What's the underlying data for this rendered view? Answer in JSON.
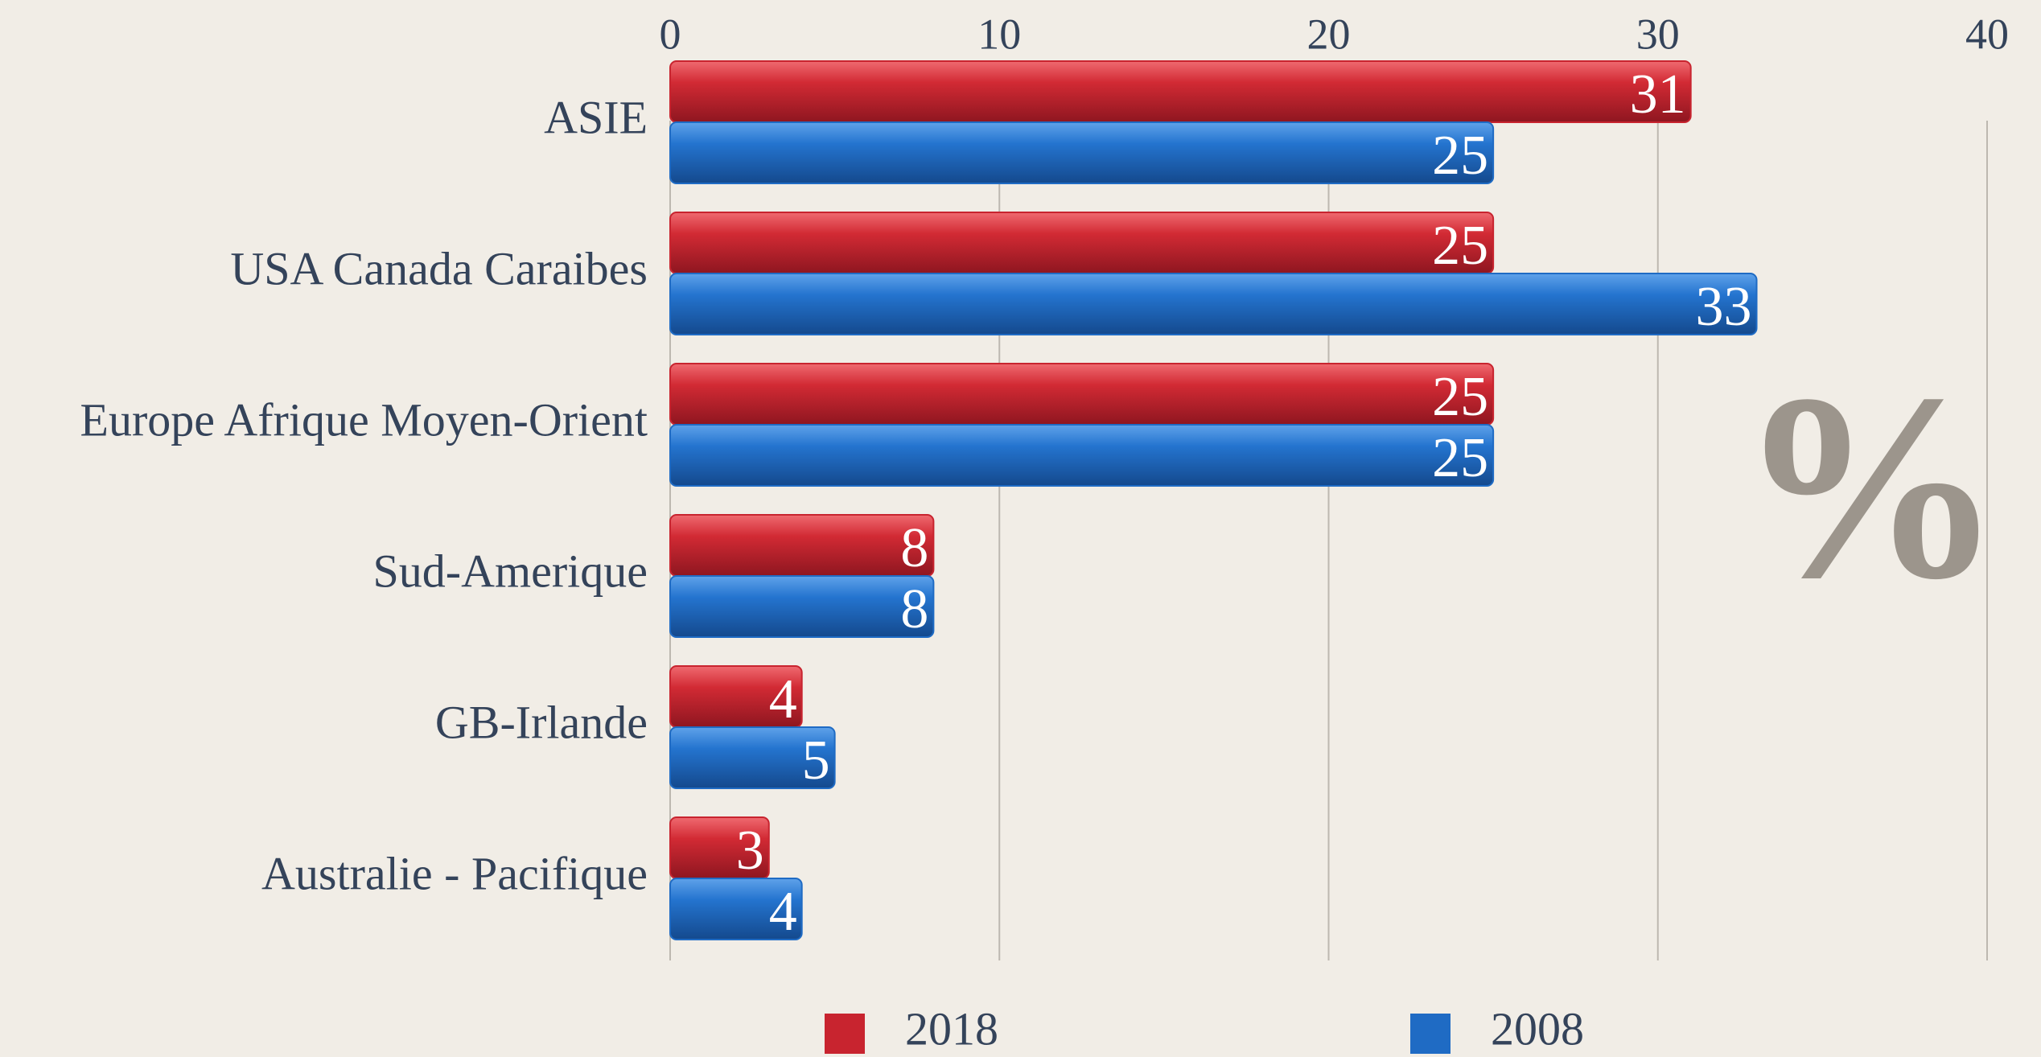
{
  "chart_data": {
    "type": "bar",
    "orientation": "horizontal",
    "categories": [
      "ASIE",
      "USA Canada Caraibes",
      "Europe Afrique Moyen-Orient",
      "Sud-Amerique",
      "GB-Irlande",
      "Australie - Pacifique"
    ],
    "series": [
      {
        "name": "2018",
        "color": "#c8242f",
        "values": [
          31,
          25,
          25,
          8,
          4,
          3
        ]
      },
      {
        "name": "2008",
        "color": "#1f6bc4",
        "values": [
          25,
          33,
          25,
          8,
          5,
          4
        ]
      }
    ],
    "xlim": [
      0,
      40
    ],
    "xticks": [
      0,
      10,
      20,
      30,
      40
    ],
    "grid": true,
    "annotation": "%",
    "legend": "bottom"
  }
}
